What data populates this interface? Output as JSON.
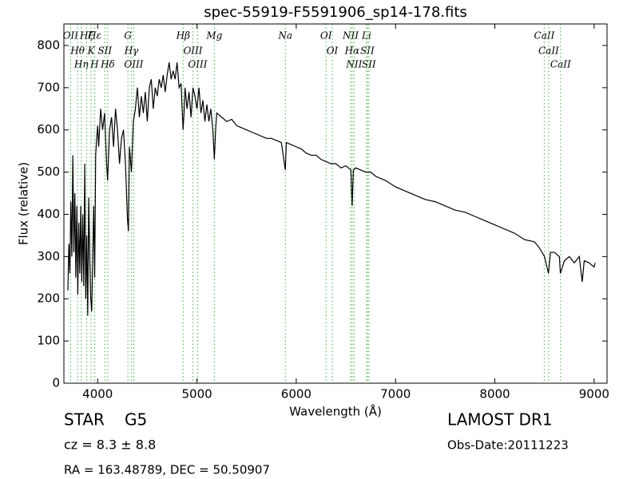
{
  "chart_data": {
    "type": "line",
    "title": "spec-55919-F5591906_sp14-178.fits",
    "xlabel": "Wavelength (Å)",
    "ylabel": "Flux (relative)",
    "xlim": [
      3660,
      9130
    ],
    "ylim": [
      0,
      851
    ],
    "xticks": [
      4000,
      5000,
      6000,
      7000,
      8000,
      9000
    ],
    "yticks": [
      0,
      100,
      200,
      300,
      400,
      500,
      600,
      700,
      800
    ],
    "x": [
      3700,
      3710,
      3720,
      3730,
      3740,
      3750,
      3760,
      3770,
      3780,
      3790,
      3800,
      3810,
      3820,
      3830,
      3840,
      3850,
      3860,
      3870,
      3880,
      3890,
      3900,
      3910,
      3920,
      3930,
      3940,
      3960,
      3970,
      3980,
      3990,
      4000,
      4010,
      4030,
      4050,
      4070,
      4090,
      4100,
      4120,
      4140,
      4160,
      4180,
      4200,
      4220,
      4240,
      4260,
      4280,
      4300,
      4310,
      4320,
      4340,
      4360,
      4380,
      4400,
      4420,
      4440,
      4460,
      4480,
      4500,
      4520,
      4540,
      4560,
      4580,
      4600,
      4620,
      4640,
      4660,
      4680,
      4700,
      4720,
      4740,
      4760,
      4780,
      4800,
      4820,
      4840,
      4860,
      4870,
      4880,
      4900,
      4920,
      4940,
      4960,
      4980,
      5000,
      5020,
      5040,
      5060,
      5080,
      5100,
      5120,
      5140,
      5160,
      5175,
      5190,
      5200,
      5250,
      5300,
      5350,
      5400,
      5450,
      5500,
      5550,
      5600,
      5650,
      5700,
      5750,
      5800,
      5850,
      5890,
      5900,
      5950,
      6000,
      6050,
      6100,
      6150,
      6200,
      6250,
      6300,
      6350,
      6400,
      6450,
      6500,
      6550,
      6563,
      6575,
      6600,
      6650,
      6700,
      6750,
      6800,
      6900,
      7000,
      7100,
      7200,
      7300,
      7400,
      7500,
      7600,
      7700,
      7800,
      7900,
      8000,
      8100,
      8200,
      8300,
      8400,
      8450,
      8500,
      8540,
      8560,
      8600,
      8650,
      8660,
      8700,
      8750,
      8800,
      8850,
      8880,
      8900,
      8950,
      9000,
      9010
    ],
    "series": [
      {
        "color": "#000000",
        "values": [
          220,
          330,
          260,
          430,
          300,
          540,
          310,
          450,
          250,
          420,
          210,
          380,
          260,
          420,
          240,
          400,
          230,
          520,
          200,
          350,
          160,
          440,
          300,
          200,
          170,
          420,
          250,
          540,
          580,
          610,
          560,
          650,
          600,
          640,
          520,
          480,
          600,
          630,
          560,
          650,
          600,
          520,
          580,
          600,
          520,
          390,
          360,
          560,
          500,
          620,
          650,
          700,
          630,
          680,
          640,
          690,
          620,
          700,
          720,
          650,
          700,
          680,
          720,
          700,
          730,
          690,
          730,
          760,
          720,
          740,
          720,
          760,
          700,
          710,
          600,
          640,
          700,
          650,
          690,
          630,
          700,
          680,
          650,
          700,
          640,
          670,
          620,
          660,
          620,
          650,
          600,
          530,
          610,
          640,
          630,
          620,
          625,
          610,
          605,
          600,
          595,
          590,
          585,
          580,
          580,
          575,
          570,
          505,
          570,
          565,
          560,
          555,
          545,
          540,
          540,
          530,
          525,
          520,
          520,
          510,
          515,
          505,
          420,
          505,
          510,
          505,
          500,
          500,
          490,
          480,
          465,
          455,
          445,
          435,
          430,
          420,
          410,
          405,
          395,
          385,
          375,
          365,
          355,
          340,
          335,
          320,
          300,
          260,
          310,
          310,
          300,
          260,
          290,
          300,
          285,
          300,
          240,
          290,
          285,
          275,
          285
        ]
      }
    ],
    "line_color": "#66bb66",
    "lines": [
      {
        "label": "OII",
        "wavelength": 3727
      },
      {
        "label": "Hθ",
        "wavelength": 3798
      },
      {
        "label": "Hη",
        "wavelength": 3835
      },
      {
        "label": "Hζ",
        "wavelength": 3889
      },
      {
        "label": "K",
        "wavelength": 3934
      },
      {
        "label": "H",
        "wavelength": 3969
      },
      {
        "label": "Hε",
        "wavelength": 3970
      },
      {
        "label": "SII",
        "wavelength": 4072
      },
      {
        "label": "Hδ",
        "wavelength": 4102
      },
      {
        "label": "G",
        "wavelength": 4305
      },
      {
        "label": "Hγ",
        "wavelength": 4340
      },
      {
        "label": "OIII",
        "wavelength": 4363
      },
      {
        "label": "Hβ",
        "wavelength": 4861
      },
      {
        "label": "OIII",
        "wavelength": 4959
      },
      {
        "label": "OIII",
        "wavelength": 5007
      },
      {
        "label": "Mg",
        "wavelength": 5175
      },
      {
        "label": "Na",
        "wavelength": 5890
      },
      {
        "label": "OI",
        "wavelength": 6300
      },
      {
        "label": "OI",
        "wavelength": 6363
      },
      {
        "label": "NII",
        "wavelength": 6548
      },
      {
        "label": "Hα",
        "wavelength": 6563
      },
      {
        "label": "NII",
        "wavelength": 6583
      },
      {
        "label": "Li",
        "wavelength": 6708
      },
      {
        "label": "SII",
        "wavelength": 6716
      },
      {
        "label": "SII",
        "wavelength": 6731
      },
      {
        "label": "CaII",
        "wavelength": 8498
      },
      {
        "label": "CaII",
        "wavelength": 8542
      },
      {
        "label": "CaII",
        "wavelength": 8662
      }
    ],
    "info": {
      "class": "STAR",
      "subclass": "G5",
      "cz": "cz = 8.3 ± 8.8",
      "coords": "RA = 163.48789, DEC = 50.50907",
      "survey": "LAMOST DR1",
      "date": "Obs-Date:20111223"
    }
  }
}
